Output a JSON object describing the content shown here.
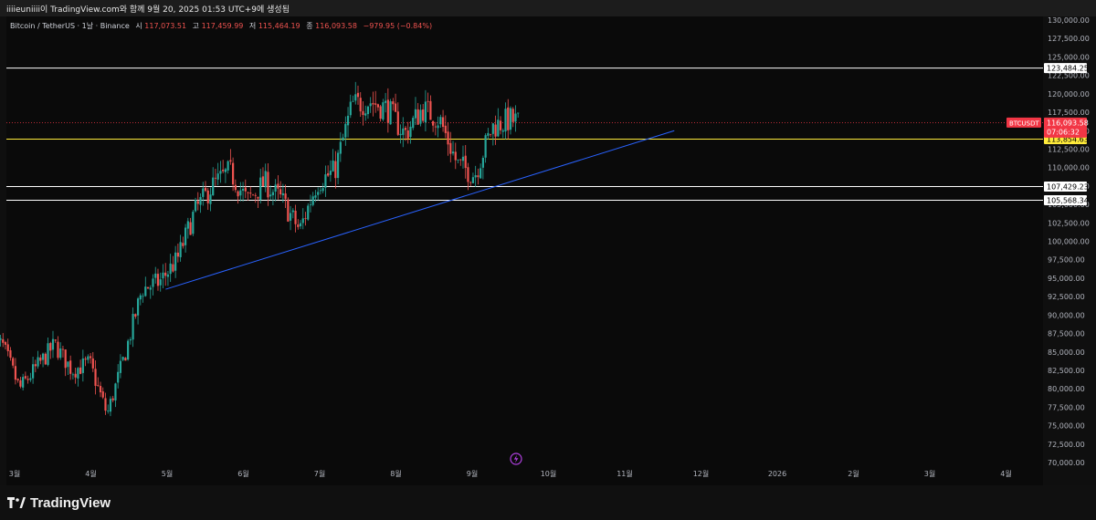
{
  "header": {
    "caption": "iiiieuniiii이 TradingView.com와 함께 9월 20, 2025 01:53 UTC+9에 생성됨"
  },
  "legend": {
    "symbol": "Bitcoin / TetherUS · 1날 · Binance",
    "open_label": "시",
    "open_value": "117,073.51",
    "high_label": "고",
    "high_value": "117,459.99",
    "low_label": "저",
    "low_value": "115,464.19",
    "close_label": "종",
    "close_value": "116,093.58",
    "change": "−979.95 (−0.84%)"
  },
  "colors": {
    "up": "#26a69a",
    "down": "#ef5350",
    "trendline": "#2962ff",
    "level_yellow": "#ffeb3b",
    "level_white": "#ffffff",
    "price_tag": "#f23645"
  },
  "chart_data": {
    "type": "candlestick",
    "symbol": "BTCUSDT",
    "y_range": [
      70000,
      130000
    ],
    "y_ticks": [
      "130,000.00",
      "127,500.00",
      "125,000.00",
      "122,500.00",
      "120,000.00",
      "117,500.00",
      "115,000.00",
      "112,500.00",
      "110,000.00",
      "107,500.00",
      "105,000.00",
      "102,500.00",
      "100,000.00",
      "97,500.00",
      "95,000.00",
      "92,500.00",
      "90,000.00",
      "87,500.00",
      "85,000.00",
      "82,500.00",
      "80,000.00",
      "77,500.00",
      "75,000.00",
      "72,500.00",
      "70,000.00"
    ],
    "x_ticks": [
      "3월",
      "4월",
      "5월",
      "6월",
      "7월",
      "8월",
      "9월",
      "10월",
      "11월",
      "12월",
      "2026",
      "2월",
      "3월",
      "4월"
    ],
    "horizontal_levels": [
      {
        "value": 123484.25,
        "label": "123,484.25",
        "style": "white"
      },
      {
        "value": 113854.63,
        "label": "113,854.63",
        "style": "yellow"
      },
      {
        "value": 107429.23,
        "label": "107,429.23",
        "style": "white"
      },
      {
        "value": 105568.34,
        "label": "105,568.34",
        "style": "white"
      }
    ],
    "last_price": {
      "symbol": "BTCUSDT",
      "value": 116093.58,
      "label": "116,093.58",
      "countdown": "07:06:32"
    },
    "trendline": [
      {
        "month": 1.98,
        "value": 93500
      },
      {
        "month": 8.65,
        "value": 115000
      }
    ],
    "weekly_close": [
      {
        "date": "2025-02-24",
        "close": 86000
      },
      {
        "date": "2025-03-03",
        "close": 80000
      },
      {
        "date": "2025-03-10",
        "close": 83000
      },
      {
        "date": "2025-03-17",
        "close": 86000
      },
      {
        "date": "2025-03-24",
        "close": 82500
      },
      {
        "date": "2025-03-31",
        "close": 83500
      },
      {
        "date": "2025-04-07",
        "close": 76500
      },
      {
        "date": "2025-04-14",
        "close": 84500
      },
      {
        "date": "2025-04-21",
        "close": 93500
      },
      {
        "date": "2025-04-28",
        "close": 94500
      },
      {
        "date": "2025-05-05",
        "close": 97500
      },
      {
        "date": "2025-05-12",
        "close": 104000
      },
      {
        "date": "2025-05-19",
        "close": 107500
      },
      {
        "date": "2025-05-26",
        "close": 109500
      },
      {
        "date": "2025-06-02",
        "close": 105500
      },
      {
        "date": "2025-06-09",
        "close": 108000
      },
      {
        "date": "2025-06-16",
        "close": 105500
      },
      {
        "date": "2025-06-23",
        "close": 101500
      },
      {
        "date": "2025-06-30",
        "close": 108000
      },
      {
        "date": "2025-07-07",
        "close": 109500
      },
      {
        "date": "2025-07-14",
        "close": 118500
      },
      {
        "date": "2025-07-21",
        "close": 119000
      },
      {
        "date": "2025-07-28",
        "close": 118000
      },
      {
        "date": "2025-08-04",
        "close": 114500
      },
      {
        "date": "2025-08-11",
        "close": 118000
      },
      {
        "date": "2025-08-18",
        "close": 116500
      },
      {
        "date": "2025-08-25",
        "close": 110500
      },
      {
        "date": "2025-09-01",
        "close": 109000
      },
      {
        "date": "2025-09-08",
        "close": 115500
      },
      {
        "date": "2025-09-15",
        "close": 116500
      },
      {
        "date": "2025-09-19",
        "close": 116093.58
      }
    ]
  },
  "footer": {
    "brand": "TradingView"
  }
}
